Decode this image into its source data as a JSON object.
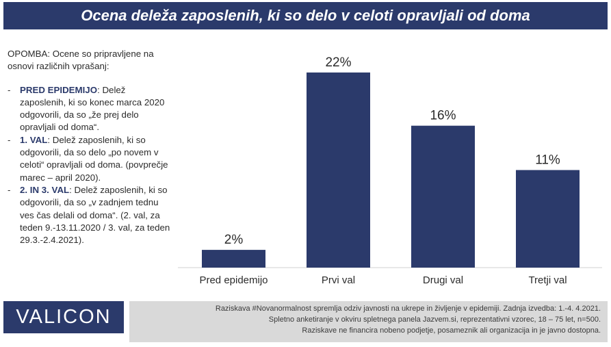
{
  "header": {
    "title": "Ocena deleža zaposlenih, ki so delo v celoti opravljali od doma"
  },
  "note": {
    "intro": "OPOMBA: Ocene so pripravljene na osnovi različnih vprašanj:",
    "items": [
      {
        "label": "PRED EPIDEMIJO",
        "text": ": Delež zaposlenih, ki so konec marca 2020 odgovorili, da so „že prej delo opravljali od doma“."
      },
      {
        "label": "1. VAL",
        "text": ": Delež zaposlenih, ki so odgovorili, da so delo „po novem v celoti“ opravljali od doma. (povprečje marec – april 2020)."
      },
      {
        "label": "2. IN 3. VAL",
        "text": ": Delež zaposlenih, ki so odgovorili, da so „v zadnjem tednu ves čas delali od doma“. (2. val, za teden 9.-13.11.2020 / 3. val, za teden 29.3.-2.4.2021)."
      }
    ],
    "dash": "-"
  },
  "chart_data": {
    "type": "bar",
    "categories": [
      "Pred epidemijo",
      "Prvi val",
      "Drugi val",
      "Tretji val"
    ],
    "values": [
      2,
      22,
      16,
      11
    ],
    "value_labels": [
      "2%",
      "22%",
      "16%",
      "11%"
    ],
    "ylim": [
      0,
      24
    ],
    "bar_color": "#2b3a6b",
    "grid": false,
    "legend": false
  },
  "brand": {
    "logo": "VALICON",
    "color": "#2b3a6b"
  },
  "footer": {
    "lines": [
      "Raziskava #Novanormalnost spremlja odziv javnosti na ukrepe in življenje v epidemiji. Zadnja izvedba: 1.-4. 4.2021.",
      "Spletno anketiranje v okviru spletnega panela Jazvem.si, reprezentativni vzorec, 18 – 75 let, n=500.",
      "Raziskave ne financira nobeno podjetje, posameznik ali organizacija in je javno dostopna."
    ]
  }
}
